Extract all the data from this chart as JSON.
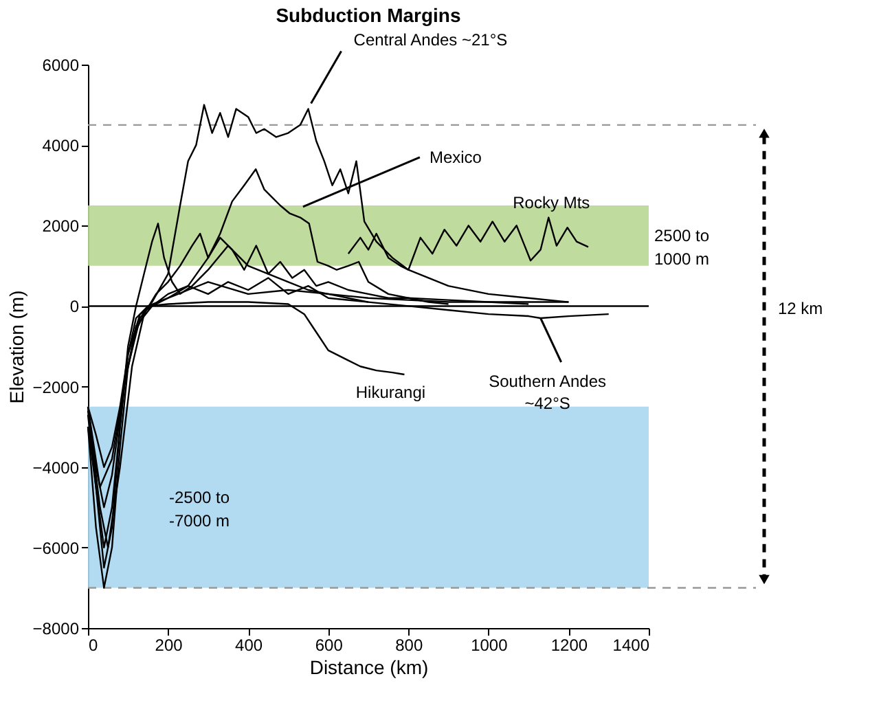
{
  "chart_data": {
    "type": "line",
    "title": "Subduction Margins",
    "xlabel": "Distance (km)",
    "ylabel": "Elevation (m)",
    "xlim": [
      0,
      1400
    ],
    "xticks": [
      0,
      200,
      400,
      600,
      800,
      1000,
      1200,
      1400
    ],
    "ylim": [
      -8000,
      6000
    ],
    "yticks": [
      -8000,
      -6000,
      -4000,
      -2000,
      0,
      2000,
      4000,
      6000
    ],
    "grid": false,
    "line_style": "solid",
    "series": [
      {
        "color": "#000000",
        "x": [
          0,
          20,
          40,
          60,
          80,
          100,
          130,
          160,
          200,
          230,
          250,
          270,
          290,
          310,
          330,
          350,
          370,
          400,
          420,
          440,
          470,
          500,
          530,
          550,
          570,
          590,
          610,
          630,
          650,
          670,
          690,
          720,
          760,
          800,
          850,
          900,
          1000,
          1100,
          1200
        ],
        "values": [
          -3000,
          -5500,
          -7000,
          -6000,
          -3500,
          -1500,
          -300,
          100,
          800,
          2500,
          3600,
          4000,
          5000,
          4300,
          4800,
          4200,
          4900,
          4700,
          4300,
          4400,
          4200,
          4300,
          4500,
          4900,
          4100,
          3600,
          3000,
          3400,
          2800,
          3600,
          2100,
          1600,
          1200,
          900,
          700,
          500,
          300,
          200,
          100
        ]
      },
      {
        "color": "#000000",
        "x": [
          0,
          20,
          40,
          60,
          90,
          120,
          160,
          200,
          250,
          300,
          330,
          360,
          390,
          419,
          440,
          460,
          480,
          504,
          530,
          552,
          573,
          600,
          621,
          650,
          676,
          700,
          750,
          800,
          850,
          900
        ],
        "values": [
          -2500,
          -4000,
          -5000,
          -4200,
          -2000,
          -500,
          0,
          200,
          500,
          1200,
          1800,
          2600,
          3000,
          3400,
          2900,
          2700,
          2500,
          2300,
          2200,
          2050,
          1100,
          1000,
          900,
          1000,
          1100,
          600,
          300,
          200,
          100,
          50
        ]
      },
      {
        "color": "#000000",
        "x": [
          650,
          680,
          700,
          720,
          750,
          780,
          800,
          830,
          860,
          890,
          920,
          950,
          980,
          1010,
          1040,
          1070,
          1105,
          1130,
          1150,
          1170,
          1197,
          1220,
          1249
        ],
        "values": [
          1300,
          1700,
          1400,
          1800,
          1200,
          1000,
          900,
          1700,
          1300,
          1900,
          1500,
          2000,
          1600,
          2100,
          1600,
          2000,
          1130,
          1400,
          2200,
          1500,
          1950,
          1600,
          1470
        ]
      },
      {
        "color": "#000000",
        "x": [
          0,
          20,
          40,
          60,
          80,
          100,
          120,
          140,
          160,
          175,
          190,
          210,
          230,
          260,
          300,
          350,
          400,
          450,
          500,
          550,
          600,
          650,
          700
        ],
        "values": [
          -3000,
          -4500,
          -6500,
          -5500,
          -3000,
          -1000,
          0,
          800,
          1600,
          2050,
          1200,
          600,
          300,
          500,
          900,
          1500,
          1000,
          800,
          600,
          400,
          300,
          200,
          100
        ]
      },
      {
        "color": "#000000",
        "x": [
          0,
          30,
          50,
          80,
          110,
          140,
          170,
          200,
          230,
          260,
          280,
          300,
          330,
          360,
          390,
          420,
          450,
          480,
          510,
          540,
          570,
          600,
          650,
          700,
          750,
          800,
          900,
          1000,
          1100,
          1200
        ],
        "values": [
          -2600,
          -5000,
          -6000,
          -4000,
          -1500,
          -200,
          300,
          600,
          1000,
          1500,
          1800,
          1200,
          1700,
          1400,
          900,
          1500,
          800,
          1100,
          700,
          900,
          500,
          600,
          400,
          300,
          200,
          200,
          150,
          100,
          100,
          100
        ]
      },
      {
        "color": "#000000",
        "x": [
          0,
          20,
          40,
          60,
          80,
          100,
          130,
          160,
          200,
          250,
          300,
          350,
          400,
          450,
          500,
          550,
          600,
          700,
          800,
          900,
          1000,
          1100,
          1130,
          1200,
          1300
        ],
        "values": [
          -2700,
          -4500,
          -6000,
          -5000,
          -3000,
          -1200,
          -200,
          0,
          300,
          500,
          300,
          600,
          400,
          700,
          300,
          500,
          200,
          100,
          0,
          -100,
          -200,
          -250,
          -300,
          -250,
          -200
        ]
      },
      {
        "color": "#000000",
        "x": [
          0,
          20,
          40,
          60,
          80,
          100,
          120,
          150,
          200,
          300,
          400,
          500,
          540,
          560,
          580,
          600,
          640,
          680,
          720,
          760,
          790
        ],
        "values": [
          -2500,
          -3200,
          -4000,
          -3500,
          -2500,
          -1200,
          -300,
          0,
          50,
          100,
          100,
          50,
          -200,
          -500,
          -800,
          -1100,
          -1300,
          -1500,
          -1600,
          -1650,
          -1700
        ]
      },
      {
        "color": "#000000",
        "x": [
          0,
          30,
          60,
          90,
          120,
          150,
          200,
          250,
          300,
          400,
          500,
          600,
          700,
          800,
          900,
          1000,
          1100
        ],
        "values": [
          -2500,
          -4500,
          -3800,
          -2000,
          -600,
          0,
          200,
          400,
          600,
          300,
          400,
          300,
          200,
          150,
          100,
          100,
          50
        ]
      }
    ],
    "bands": [
      {
        "axis": "y",
        "from": 1000,
        "to": 2500,
        "label": "2500 to\n1000 m",
        "color": "#b8d793"
      },
      {
        "axis": "y",
        "from": -7000,
        "to": -2500,
        "label": "-2500 to\n-7000 m",
        "color": "#aad6f0"
      }
    ],
    "ref_lines": [
      {
        "axis": "y",
        "value": 4500,
        "color": "#999999",
        "line_style": "dashed"
      },
      {
        "axis": "y",
        "value": -7000,
        "color": "#999999",
        "line_style": "dashed"
      },
      {
        "axis": "y",
        "value": 0,
        "color": "#000000",
        "line_style": "solid"
      }
    ],
    "annotations": [
      {
        "text": "Central Andes ~21°S",
        "x": 550,
        "y": 4900
      },
      {
        "text": "Mexico",
        "x": 530,
        "y": 2400
      },
      {
        "text": "Rocky Mts",
        "x": 1150,
        "y": 2200
      },
      {
        "text": "Hikurangi",
        "x": 790,
        "y": -1700
      },
      {
        "text": "Southern Andes\n~42°S",
        "x": 1130,
        "y": -300
      },
      "12 km"
    ]
  }
}
